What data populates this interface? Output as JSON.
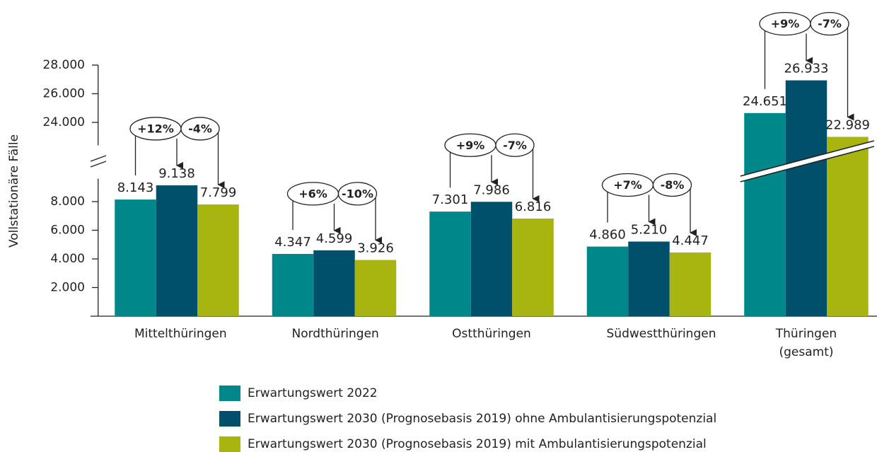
{
  "chart_data": {
    "type": "bar",
    "ylabel": "Vollstationäre Fälle",
    "categories": [
      "Mittelthüringen",
      "Nordthüringen",
      "Ostthüringen",
      "Südwestthüringen",
      "Thüringen (gesamt)"
    ],
    "series": [
      {
        "name": "Erwartungswert 2022",
        "color": "#00878a",
        "values": [
          8143,
          4347,
          7301,
          4860,
          24651
        ],
        "value_labels": [
          "8.143",
          "4.347",
          "7.301",
          "4.860",
          "24.651"
        ]
      },
      {
        "name": "Erwartungswert 2030 (Prognosebasis 2019) ohne Ambulantisierungspotenzial",
        "color": "#004f6b",
        "values": [
          9138,
          4599,
          7986,
          5210,
          26933
        ],
        "value_labels": [
          "9.138",
          "4.599",
          "7.986",
          "5.210",
          "26.933"
        ]
      },
      {
        "name": "Erwartungswert 2030 (Prognosebasis 2019) mit Ambulantisierungspotenzial",
        "color": "#a8b40f",
        "values": [
          7799,
          3926,
          6816,
          4447,
          22989
        ],
        "value_labels": [
          "7.799",
          "3.926",
          "6.816",
          "4.447",
          "22.989"
        ]
      }
    ],
    "changes": [
      {
        "up": "+12%",
        "down": "-4%"
      },
      {
        "up": "+6%",
        "down": "-10%"
      },
      {
        "up": "+9%",
        "down": "-7%"
      },
      {
        "up": "+7%",
        "down": "-8%"
      },
      {
        "up": "+9%",
        "down": "-7%"
      }
    ],
    "ylim": [
      0,
      28000
    ],
    "ybreak": [
      10000,
      22000
    ],
    "yticks": [
      {
        "value": 2000,
        "label": "2.000"
      },
      {
        "value": 4000,
        "label": "4.000"
      },
      {
        "value": 6000,
        "label": "6.000"
      },
      {
        "value": 8000,
        "label": "8.000"
      },
      {
        "value": 24000,
        "label": "24.000"
      },
      {
        "value": 26000,
        "label": "26.000"
      },
      {
        "value": 28000,
        "label": "28.000"
      }
    ],
    "grid": false
  }
}
